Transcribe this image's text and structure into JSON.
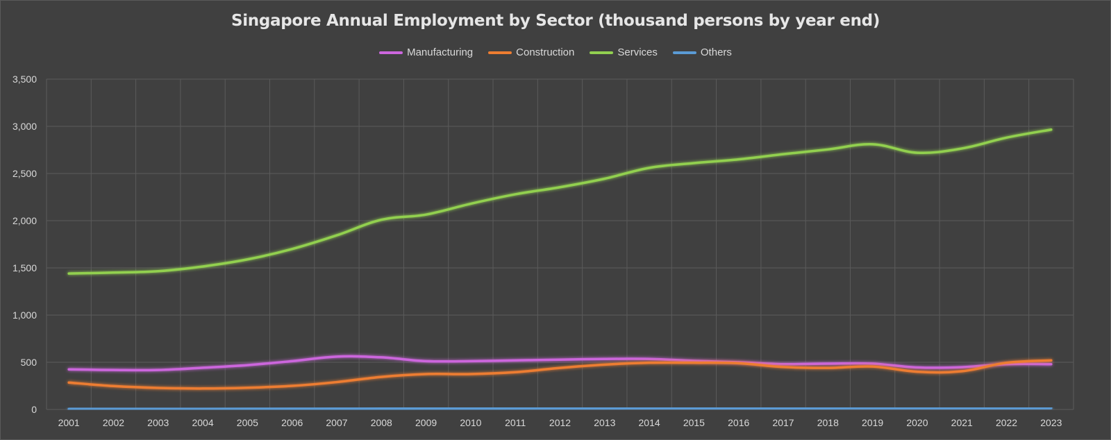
{
  "chart_data": {
    "type": "line",
    "title": "Singapore Annual Employment by Sector (thousand persons by year end)",
    "x": [
      "2001",
      "2002",
      "2003",
      "2004",
      "2005",
      "2006",
      "2007",
      "2008",
      "2009",
      "2010",
      "2011",
      "2012",
      "2013",
      "2014",
      "2015",
      "2016",
      "2017",
      "2018",
      "2019",
      "2020",
      "2021",
      "2022",
      "2023"
    ],
    "y_ticks": [
      "0",
      "500",
      "1,000",
      "1,500",
      "2,000",
      "2,500",
      "3,000",
      "3,500"
    ],
    "ylim": [
      0,
      3500
    ],
    "grid": true,
    "legend_position": "top",
    "series": [
      {
        "name": "Manufacturing",
        "color": "#cc66dd",
        "values": [
          425,
          418,
          418,
          442,
          470,
          512,
          560,
          552,
          512,
          512,
          520,
          528,
          535,
          535,
          515,
          500,
          480,
          485,
          485,
          445,
          448,
          480,
          480
        ]
      },
      {
        "name": "Construction",
        "color": "#ed7d31",
        "values": [
          285,
          248,
          228,
          222,
          230,
          250,
          290,
          345,
          375,
          375,
          395,
          440,
          475,
          495,
          495,
          490,
          450,
          440,
          455,
          400,
          405,
          495,
          520
        ]
      },
      {
        "name": "Services",
        "color": "#92d050",
        "values": [
          1440,
          1450,
          1465,
          1515,
          1590,
          1700,
          1845,
          2010,
          2065,
          2180,
          2280,
          2355,
          2445,
          2560,
          2610,
          2650,
          2705,
          2755,
          2810,
          2720,
          2765,
          2880,
          2965
        ]
      },
      {
        "name": "Others",
        "color": "#5b9bd5",
        "values": [
          5,
          5,
          5,
          5,
          6,
          7,
          8,
          9,
          10,
          10,
          11,
          12,
          12,
          13,
          13,
          13,
          13,
          13,
          14,
          14,
          14,
          14,
          15
        ]
      }
    ]
  }
}
